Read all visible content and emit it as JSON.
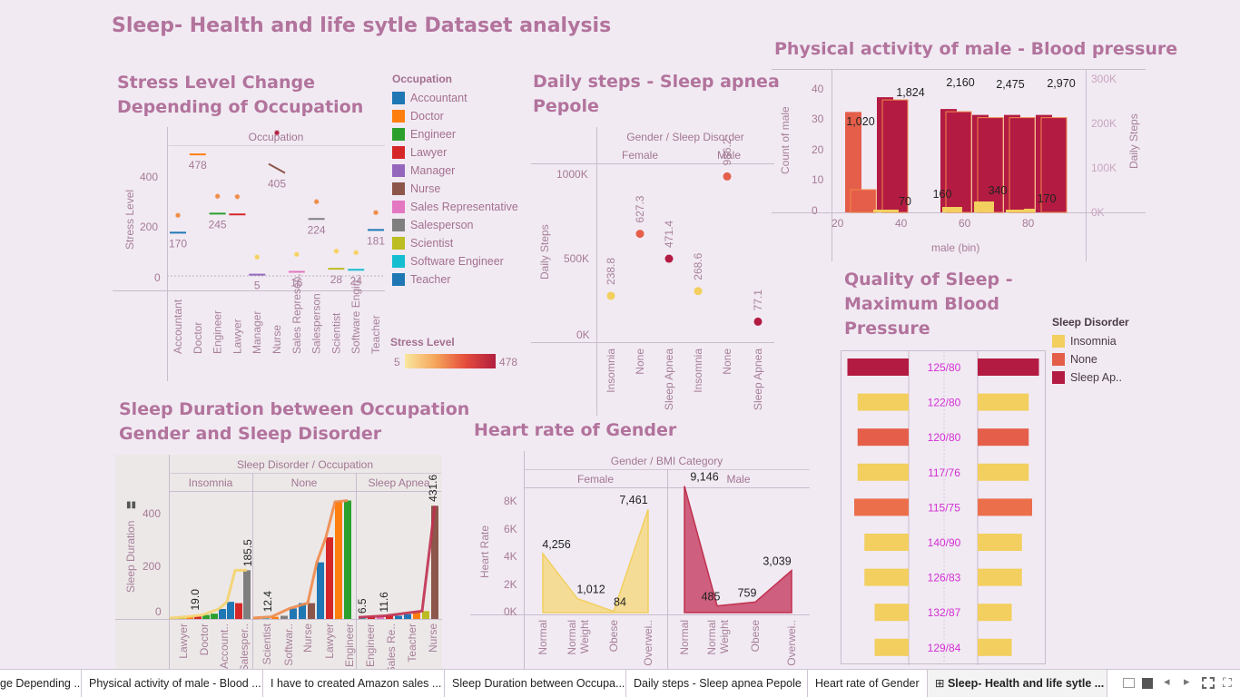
{
  "dashboard": {
    "title": "Sleep- Health and life sytle Dataset analysis"
  },
  "stress": {
    "title_l1": "Stress Level Change",
    "title_l2": "Depending of Occupation",
    "header": "Occupation",
    "ylabel": "Stress Level",
    "yticks": [
      "400",
      "200",
      "0"
    ],
    "legend_title": "Occupation",
    "legend": [
      {
        "name": "Accountant",
        "color": "#1f77b4"
      },
      {
        "name": "Doctor",
        "color": "#ff7f0e"
      },
      {
        "name": "Engineer",
        "color": "#2ca02c"
      },
      {
        "name": "Lawyer",
        "color": "#d62728"
      },
      {
        "name": "Manager",
        "color": "#9467bd"
      },
      {
        "name": "Nurse",
        "color": "#8c564b"
      },
      {
        "name": "Sales Representative",
        "color": "#e377c2"
      },
      {
        "name": "Salesperson",
        "color": "#7f7f7f"
      },
      {
        "name": "Scientist",
        "color": "#bcbd22"
      },
      {
        "name": "Software Engineer",
        "color": "#17becf"
      },
      {
        "name": "Teacher",
        "color": "#1f77b4"
      }
    ],
    "scale_title": "Stress Level",
    "scale_min": "5",
    "scale_max": "478"
  },
  "steps": {
    "title_l1": "Daily steps - Sleep apnea",
    "title_l2": "Pepole",
    "header": "Gender  /  Sleep Disorder",
    "g1": "Female",
    "g2": "Male",
    "ylabel": "Daily Steps",
    "yticks": [
      "1000K",
      "500K",
      "0K"
    ]
  },
  "phys": {
    "title": "Physical activity of male - Blood pressure",
    "ylabel": "Count of male",
    "ylabel2": "Daily Steps",
    "yticks": [
      "40",
      "30",
      "20",
      "10",
      "0"
    ],
    "yticks2": [
      "300K",
      "200K",
      "100K",
      "0K"
    ],
    "xticks": [
      "20",
      "40",
      "60",
      "80"
    ],
    "xlabel": "male (bin)"
  },
  "qual": {
    "title_l1": "Quality of Sleep -",
    "title_l2": "Maximum Blood",
    "title_l3": "Pressure",
    "legend_title": "Sleep Disorder",
    "legend": [
      {
        "name": "Insomnia",
        "color": "#f2cf5e"
      },
      {
        "name": "None",
        "color": "#e45e4a"
      },
      {
        "name": "Sleep Ap..",
        "color": "#b31b42"
      }
    ]
  },
  "dur": {
    "title_l1": "Sleep Duration between Occupation",
    "title_l2": "Gender and Sleep Disorder",
    "header": "Sleep Disorder  /  Occupation",
    "g1": "Insomnia",
    "g2": "None",
    "g3": "Sleep Apnea",
    "ylabel": "Sleep Duration",
    "yticks": [
      "400",
      "200",
      "0"
    ]
  },
  "hr": {
    "title": "Heart rate of Gender",
    "header": "Gender  /  BMI Category",
    "g1": "Female",
    "g2": "Male",
    "ylabel": "Heart Rate",
    "yticks": [
      "8K",
      "6K",
      "4K",
      "2K",
      "0K"
    ]
  },
  "tabs": [
    {
      "label": "ge Depending ..."
    },
    {
      "label": "Physical activity of male - Blood ..."
    },
    {
      "label": "I have to created Amazon sales ..."
    },
    {
      "label": "Sleep Duration between Occupa..."
    },
    {
      "label": "Daily steps - Sleep apnea Pepole"
    },
    {
      "label": "Heart rate of Gender"
    },
    {
      "label": "Sleep- Health and life sytle ..."
    }
  ],
  "chart_data": [
    {
      "type": "scatter",
      "title": "Stress Level Change Depending of Occupation",
      "ylabel": "Stress Level",
      "categories": [
        "Accountant",
        "Doctor",
        "Engineer",
        "Lawyer",
        "Manager",
        "Nurse",
        "Sales Represen..",
        "Salesperson",
        "Scientist",
        "Software Engin..",
        "Teacher"
      ],
      "values": [
        170,
        478,
        245,
        242,
        5,
        405,
        16,
        224,
        28,
        24,
        181
      ],
      "labels": [
        "170",
        "478",
        "245",
        "",
        "5",
        "405",
        "16",
        "224",
        "28",
        "24",
        "181"
      ]
    },
    {
      "type": "scatter",
      "title": "Daily steps - Sleep apnea Pepole",
      "ylabel": "Daily Steps",
      "categories": [
        "Female / Insomnia",
        "Female / None",
        "Female / Sleep Apnea",
        "Male / Insomnia",
        "Male / None",
        "Male / Sleep Apnea"
      ],
      "values": [
        238.8,
        627.3,
        471.4,
        268.6,
        986.2,
        77.1
      ],
      "labels": [
        "238.8",
        "627.3",
        "471.4",
        "268.6",
        "986.2",
        "77.1"
      ]
    },
    {
      "type": "bar",
      "title": "Physical activity of male - Blood pressure",
      "xlabel": "male (bin)",
      "ylabel": "Count of male",
      "ylim": [
        0,
        45
      ],
      "bins": [
        25,
        35,
        45,
        55,
        65,
        75,
        85
      ],
      "series": [
        {
          "name": "Insomnia",
          "values": [
            0,
            1,
            0,
            2,
            4,
            1,
            0
          ]
        },
        {
          "name": "None",
          "values": [
            34,
            0,
            0,
            0,
            0,
            0,
            0
          ]
        },
        {
          "name": "Sleep Apnea",
          "values": [
            0,
            39,
            0,
            35,
            33,
            33,
            33
          ]
        }
      ],
      "steps_labels": [
        "1,020",
        "70",
        "1,824",
        "160",
        "2,160",
        "340",
        "2,475",
        "170",
        "2,970"
      ]
    },
    {
      "type": "bar",
      "title": "Quality of Sleep - Maximum Blood Pressure",
      "categories": [
        "125/80",
        "122/80",
        "120/80",
        "117/76",
        "115/75",
        "140/90",
        "126/83",
        "132/87",
        "129/84"
      ],
      "values": [
        9,
        7.5,
        7.5,
        7.5,
        8,
        6.5,
        6.5,
        5,
        5
      ],
      "colors": [
        "#b31b42",
        "#f2cf5e",
        "#e45e4a",
        "#f2cf5e",
        "#ec6f4b",
        "#f2cf5e",
        "#f2cf5e",
        "#f2cf5e",
        "#f2cf5e"
      ]
    },
    {
      "type": "bar",
      "title": "Sleep Duration between Occupation Gender and Sleep Disorder",
      "ylabel": "Sleep Duration",
      "categories": [
        "Lawyer",
        "Doctor",
        "Account..",
        "Salesper..",
        "Scientist",
        "Softwar..",
        "Nurse",
        "Lawyer",
        "Engineer",
        "Engineer",
        "Sales Re..",
        "Teacher",
        "Nurse"
      ],
      "labels": [
        "19.0",
        "185.5",
        "12.4",
        "6.5",
        "11.6",
        "431.6"
      ]
    },
    {
      "type": "area",
      "title": "Heart rate of Gender",
      "ylabel": "Heart Rate",
      "categories": [
        "Normal",
        "Normal Weight",
        "Obese",
        "Overwei.."
      ],
      "series": [
        {
          "name": "Female",
          "values": [
            4256,
            1012,
            84,
            7461
          ]
        },
        {
          "name": "Male",
          "values": [
            9146,
            485,
            759,
            3039
          ]
        }
      ]
    }
  ]
}
